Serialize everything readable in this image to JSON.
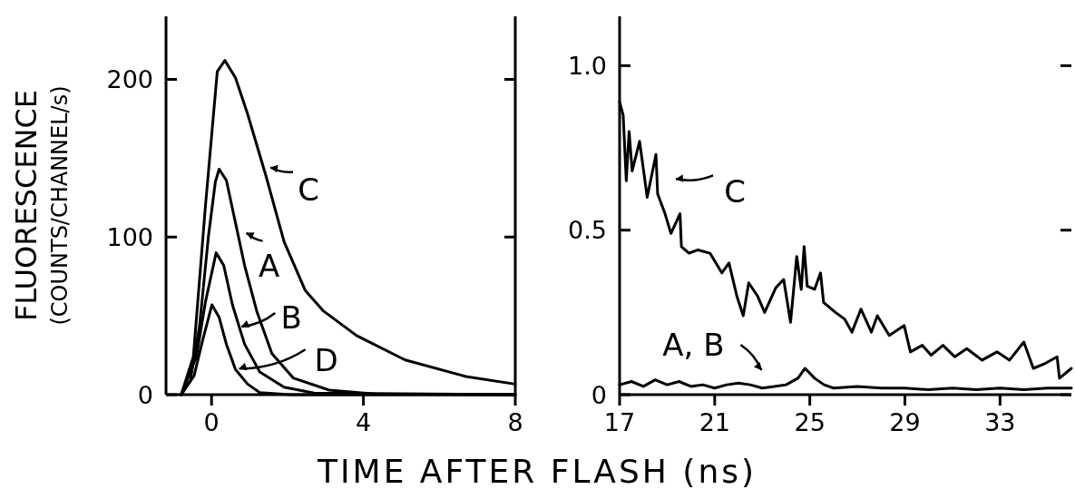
{
  "chart_data": [
    {
      "type": "line",
      "xlabel": "TIME AFTER FLASH (ns)",
      "ylabel": "FLUORESCENCE\n(COUNTS/CHANNEL/s)",
      "xlim": [
        -1.2,
        8
      ],
      "ylim": [
        0,
        240
      ],
      "xticks": [
        0,
        4,
        8
      ],
      "yticks": [
        0,
        100,
        200
      ],
      "grid": false,
      "legend": "center",
      "series": [
        {
          "name": "A",
          "color": "#000000",
          "x": [
            -0.8,
            -0.56,
            -0.32,
            -0.08,
            0.1,
            0.2,
            0.39,
            0.63,
            0.87,
            1.19,
            1.59,
            2.15,
            3.1,
            4.3,
            8
          ],
          "values": [
            0,
            9,
            43,
            101,
            135,
            143,
            136,
            109,
            82,
            53,
            26,
            10.6,
            2.9,
            0.5,
            0
          ]
        },
        {
          "name": "B",
          "color": "#000000",
          "x": [
            -0.8,
            -0.4,
            -0.16,
            0.12,
            0.32,
            0.55,
            0.87,
            1.27,
            1.91,
            2.7,
            8
          ],
          "values": [
            0,
            24,
            59,
            90,
            82,
            57,
            32,
            14.4,
            4.8,
            1,
            0
          ]
        },
        {
          "name": "C",
          "color": "#000000",
          "x": [
            -0.8,
            -0.48,
            -0.16,
            0.15,
            0.35,
            0.63,
            0.95,
            1.43,
            1.91,
            2.47,
            2.95,
            3.82,
            5.1,
            6.7,
            8
          ],
          "values": [
            0,
            24,
            120,
            205,
            212,
            201,
            178,
            139,
            97,
            66,
            53,
            37.5,
            22,
            11.5,
            6.7
          ]
        },
        {
          "name": "D",
          "color": "#000000",
          "x": [
            -0.8,
            -0.46,
            -0.24,
            0.01,
            0.2,
            0.39,
            0.63,
            0.95,
            1.27,
            2.07,
            8
          ],
          "values": [
            0,
            12,
            34,
            57,
            49,
            32,
            16,
            6.7,
            1.3,
            0,
            0
          ]
        }
      ]
    },
    {
      "type": "line",
      "xlim": [
        17,
        36
      ],
      "ylim": [
        0,
        1.15
      ],
      "xticks": [
        17,
        21,
        25,
        29,
        33
      ],
      "yticks": [
        0,
        0.5,
        {
          "value": 1,
          "label": "1.0"
        }
      ],
      "grid": false,
      "series": [
        {
          "name": "C",
          "color": "#000000",
          "x": [
            17,
            17.15,
            17.28,
            17.4,
            17.53,
            17.84,
            18.03,
            18.16,
            18.53,
            18.6,
            18.91,
            19.16,
            19.54,
            19.6,
            19.92,
            20.3,
            20.8,
            21.3,
            21.6,
            21.93,
            22.2,
            22.43,
            22.8,
            23.1,
            23.57,
            23.9,
            24.19,
            24.45,
            24.64,
            24.76,
            24.89,
            25.2,
            25.45,
            25.58,
            26.08,
            26.46,
            26.77,
            27.15,
            27.59,
            27.84,
            28.34,
            28.97,
            29.23,
            29.73,
            30.1,
            30.6,
            31.1,
            31.6,
            32.25,
            32.87,
            33.4,
            34,
            34.4,
            34.9,
            35.4,
            35.5,
            36
          ],
          "values": [
            0.89,
            0.85,
            0.65,
            0.8,
            0.68,
            0.77,
            0.67,
            0.6,
            0.73,
            0.61,
            0.55,
            0.49,
            0.55,
            0.45,
            0.43,
            0.44,
            0.43,
            0.37,
            0.4,
            0.3,
            0.24,
            0.34,
            0.3,
            0.25,
            0.325,
            0.35,
            0.22,
            0.42,
            0.32,
            0.45,
            0.33,
            0.32,
            0.37,
            0.28,
            0.25,
            0.23,
            0.19,
            0.26,
            0.19,
            0.24,
            0.18,
            0.21,
            0.13,
            0.15,
            0.12,
            0.15,
            0.115,
            0.14,
            0.105,
            0.13,
            0.105,
            0.16,
            0.08,
            0.095,
            0.115,
            0.05,
            0.08
          ]
        },
        {
          "name": "A, B",
          "color": "#000000",
          "x": [
            17,
            17.5,
            18,
            18.5,
            19,
            19.5,
            20,
            20.5,
            21,
            21.5,
            22,
            22.5,
            23,
            23.5,
            24,
            24.5,
            24.8,
            25.2,
            25.6,
            26,
            27,
            28,
            29,
            30,
            31,
            32,
            33,
            34,
            35,
            36
          ],
          "values": [
            0.03,
            0.04,
            0.025,
            0.045,
            0.03,
            0.04,
            0.025,
            0.03,
            0.02,
            0.03,
            0.035,
            0.03,
            0.02,
            0.025,
            0.03,
            0.05,
            0.08,
            0.05,
            0.03,
            0.02,
            0.025,
            0.02,
            0.02,
            0.015,
            0.02,
            0.015,
            0.02,
            0.015,
            0.02,
            0.02
          ]
        }
      ]
    }
  ]
}
